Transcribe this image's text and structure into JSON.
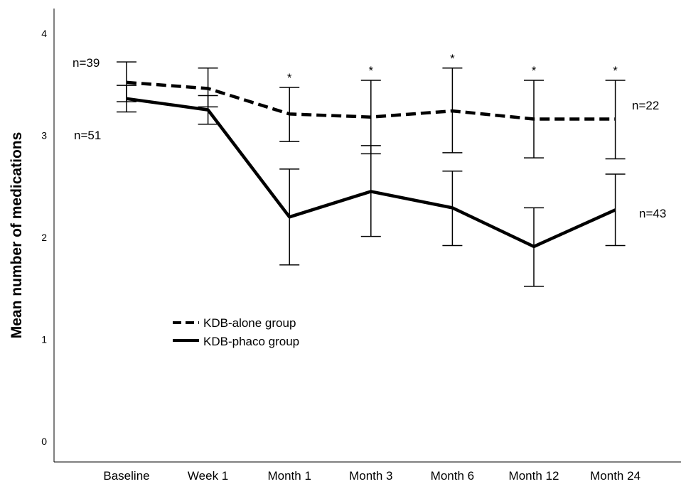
{
  "chart_data": {
    "type": "line",
    "title": "",
    "xlabel": "",
    "ylabel": "Mean number of medications",
    "ylim": [
      0,
      4.2
    ],
    "yticks": [
      0,
      1,
      2,
      3,
      4
    ],
    "categories": [
      "Baseline",
      "Week 1",
      "Month 1",
      "Month 3",
      "Month 6",
      "Month 12",
      "Month 24"
    ],
    "series": [
      {
        "name": "KDB-alone group",
        "line_style": "dashed",
        "color": "#000000",
        "values": [
          3.52,
          3.46,
          3.21,
          3.18,
          3.24,
          3.16,
          3.16
        ],
        "error_low": [
          3.33,
          3.28,
          2.94,
          2.82,
          2.83,
          2.78,
          2.77
        ],
        "error_high": [
          3.72,
          3.66,
          3.47,
          3.54,
          3.66,
          3.54,
          3.54
        ]
      },
      {
        "name": "KDB-phaco group",
        "line_style": "solid",
        "color": "#000000",
        "values": [
          3.36,
          3.25,
          2.2,
          2.45,
          2.29,
          1.91,
          2.27
        ],
        "error_low": [
          3.23,
          3.11,
          1.73,
          2.01,
          1.92,
          1.52,
          1.92
        ],
        "error_high": [
          3.49,
          3.39,
          2.67,
          2.9,
          2.65,
          2.29,
          2.62
        ]
      }
    ],
    "significance": [
      "",
      "",
      "*",
      "*",
      "*",
      "*",
      "*"
    ],
    "annotations": {
      "alone_start": "n=39",
      "phaco_start": "n=51",
      "alone_end": "n=22",
      "phaco_end": "n=43"
    },
    "legend_position": "lower-left",
    "grid": false
  }
}
